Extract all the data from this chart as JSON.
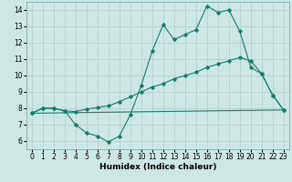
{
  "title": "",
  "xlabel": "Humidex (Indice chaleur)",
  "xlim": [
    -0.5,
    23.5
  ],
  "ylim": [
    5.5,
    14.5
  ],
  "xticks": [
    0,
    1,
    2,
    3,
    4,
    5,
    6,
    7,
    8,
    9,
    10,
    11,
    12,
    13,
    14,
    15,
    16,
    17,
    18,
    19,
    20,
    21,
    22,
    23
  ],
  "yticks": [
    6,
    7,
    8,
    9,
    10,
    11,
    12,
    13,
    14
  ],
  "bg_color": "#cce8e4",
  "line_color": "#1a7a6e",
  "grid_color": "#aacfcb",
  "series1_x": [
    0,
    1,
    2,
    3,
    4,
    5,
    6,
    7,
    8,
    9,
    10,
    11,
    12,
    13,
    14,
    15,
    16,
    17,
    18,
    19,
    20,
    21,
    22,
    23
  ],
  "series1_y": [
    7.7,
    8.0,
    8.0,
    7.85,
    7.0,
    6.5,
    6.3,
    5.95,
    6.3,
    7.6,
    9.4,
    11.5,
    13.1,
    12.2,
    12.5,
    12.8,
    14.25,
    13.85,
    14.0,
    12.7,
    10.5,
    10.1,
    8.8,
    7.9
  ],
  "series2_x": [
    0,
    1,
    2,
    3,
    4,
    5,
    6,
    7,
    8,
    9,
    10,
    11,
    12,
    13,
    14,
    15,
    16,
    17,
    18,
    19,
    20,
    21,
    22,
    23
  ],
  "series2_y": [
    7.7,
    8.0,
    8.0,
    7.85,
    7.8,
    7.95,
    8.05,
    8.15,
    8.4,
    8.7,
    9.0,
    9.3,
    9.5,
    9.8,
    10.0,
    10.2,
    10.5,
    10.7,
    10.9,
    11.1,
    10.9,
    10.1,
    8.8,
    7.9
  ],
  "series3_x": [
    0,
    23
  ],
  "series3_y": [
    7.7,
    7.9
  ],
  "tick_fontsize": 5.5,
  "label_fontsize": 6.5
}
